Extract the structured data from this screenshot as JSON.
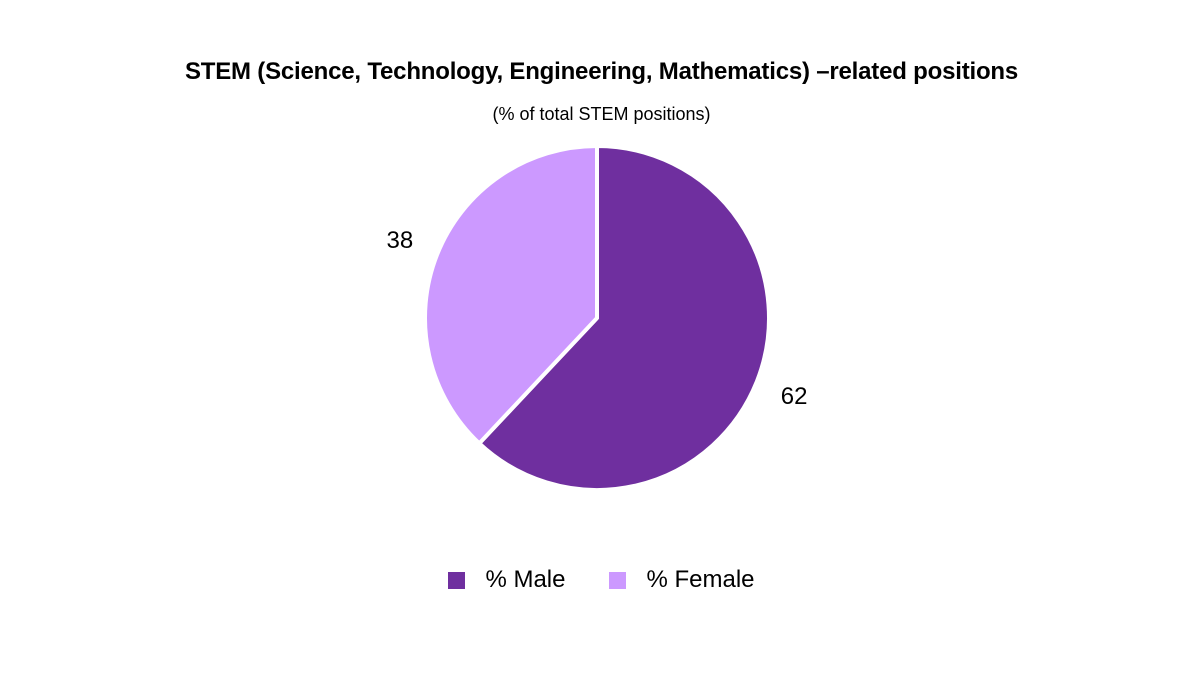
{
  "colors": {
    "male": "#6f2f9f",
    "female": "#cc99ff",
    "background": "#ffffff"
  },
  "chart_data": {
    "type": "pie",
    "title": "STEM (Science, Technology, Engineering, Mathematics) –related positions",
    "subtitle": "(% of total STEM positions)",
    "categories": [
      "% Male",
      "% Female"
    ],
    "values": [
      62,
      38
    ],
    "data_labels": [
      "62",
      "38"
    ],
    "colors": [
      "#6f2f9f",
      "#cc99ff"
    ],
    "legend_position": "bottom"
  }
}
